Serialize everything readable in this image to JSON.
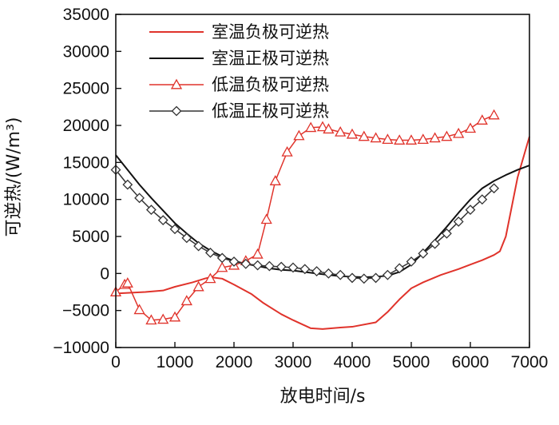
{
  "chart_data": {
    "type": "line",
    "xlabel": "放电时间/s",
    "ylabel": "可逆热/(W/m³)",
    "xlim": [
      0,
      7000
    ],
    "ylim": [
      -10000,
      35000
    ],
    "xticks": [
      0,
      1000,
      2000,
      3000,
      4000,
      5000,
      6000,
      7000
    ],
    "xtick_labels": [
      "0",
      "1000",
      "2000",
      "3000",
      "4000",
      "5000",
      "6000",
      "7000"
    ],
    "yticks": [
      -10000,
      -5000,
      0,
      5000,
      10000,
      15000,
      20000,
      25000,
      30000,
      35000
    ],
    "ytick_labels": [
      "−10000",
      "−5000",
      "0",
      "5000",
      "10000",
      "15000",
      "20000",
      "25000",
      "30000",
      "35000"
    ],
    "grid": false,
    "legend_position": "top-left",
    "series": [
      {
        "name": "室温负极可逆热",
        "color": "#e0332b",
        "marker": "none",
        "x": [
          0,
          500,
          800,
          1000,
          1300,
          1500,
          1600,
          1800,
          2000,
          2300,
          2500,
          2800,
          3000,
          3300,
          3500,
          3800,
          4000,
          4400,
          4600,
          4800,
          5000,
          5200,
          5500,
          5800,
          6000,
          6200,
          6400,
          6500,
          6600,
          6700,
          6800,
          7000
        ],
        "y": [
          -2700,
          -2500,
          -2300,
          -1800,
          -1200,
          -700,
          -500,
          -700,
          -1500,
          -2800,
          -4000,
          -5500,
          -6300,
          -7400,
          -7500,
          -7300,
          -7200,
          -6600,
          -5200,
          -3500,
          -2000,
          -1200,
          -200,
          600,
          1200,
          1800,
          2500,
          3000,
          5000,
          9000,
          13000,
          18500
        ]
      },
      {
        "name": "室温正极可逆热",
        "color": "#111111",
        "marker": "none",
        "x": [
          0,
          200,
          400,
          600,
          800,
          1000,
          1200,
          1400,
          1600,
          1800,
          2000,
          2200,
          2400,
          2600,
          2800,
          3000,
          3200,
          3400,
          3600,
          3800,
          4000,
          4200,
          4400,
          4600,
          4800,
          5000,
          5200,
          5400,
          5600,
          5800,
          6000,
          6200,
          6400,
          6600,
          6800,
          7000
        ],
        "y": [
          16000,
          14000,
          12000,
          10200,
          8500,
          6800,
          5400,
          4100,
          3100,
          2300,
          1700,
          1300,
          1000,
          700,
          500,
          400,
          200,
          0,
          -200,
          -350,
          -450,
          -500,
          -450,
          -300,
          200,
          1200,
          2800,
          4500,
          6300,
          8200,
          10000,
          11500,
          12500,
          13300,
          14000,
          14600
        ]
      },
      {
        "name": "低温负极可逆热",
        "color": "#e0332b",
        "marker": "triangle",
        "x": [
          0,
          150,
          200,
          400,
          600,
          800,
          1000,
          1200,
          1400,
          1600,
          1800,
          2000,
          2200,
          2400,
          2550,
          2700,
          2900,
          3100,
          3300,
          3500,
          3600,
          3800,
          4000,
          4200,
          4400,
          4600,
          4800,
          5000,
          5200,
          5400,
          5600,
          5800,
          6000,
          6200,
          6400
        ],
        "y": [
          -2500,
          -1500,
          -1300,
          -4900,
          -6300,
          -6200,
          -5900,
          -3700,
          -1800,
          -700,
          800,
          1100,
          1700,
          2600,
          7300,
          12500,
          16400,
          18600,
          19700,
          19800,
          19500,
          19100,
          18800,
          18500,
          18300,
          18100,
          18000,
          18000,
          18100,
          18300,
          18500,
          18900,
          19600,
          20700,
          21400
        ]
      },
      {
        "name": "低温正极可逆热",
        "color": "#333333",
        "marker": "diamond",
        "x": [
          0,
          200,
          400,
          600,
          800,
          1000,
          1200,
          1400,
          1600,
          1800,
          2000,
          2200,
          2400,
          2600,
          2800,
          3000,
          3200,
          3400,
          3600,
          3800,
          4000,
          4200,
          4400,
          4600,
          4800,
          5000,
          5200,
          5400,
          5600,
          5800,
          6000,
          6200,
          6400
        ],
        "y": [
          14000,
          12000,
          10200,
          8600,
          7200,
          6000,
          4800,
          3700,
          2800,
          2100,
          1600,
          1300,
          1100,
          1000,
          900,
          800,
          600,
          300,
          0,
          -200,
          -600,
          -700,
          -600,
          -200,
          700,
          1600,
          2700,
          4000,
          5400,
          7000,
          8600,
          10000,
          11500
        ]
      }
    ]
  }
}
